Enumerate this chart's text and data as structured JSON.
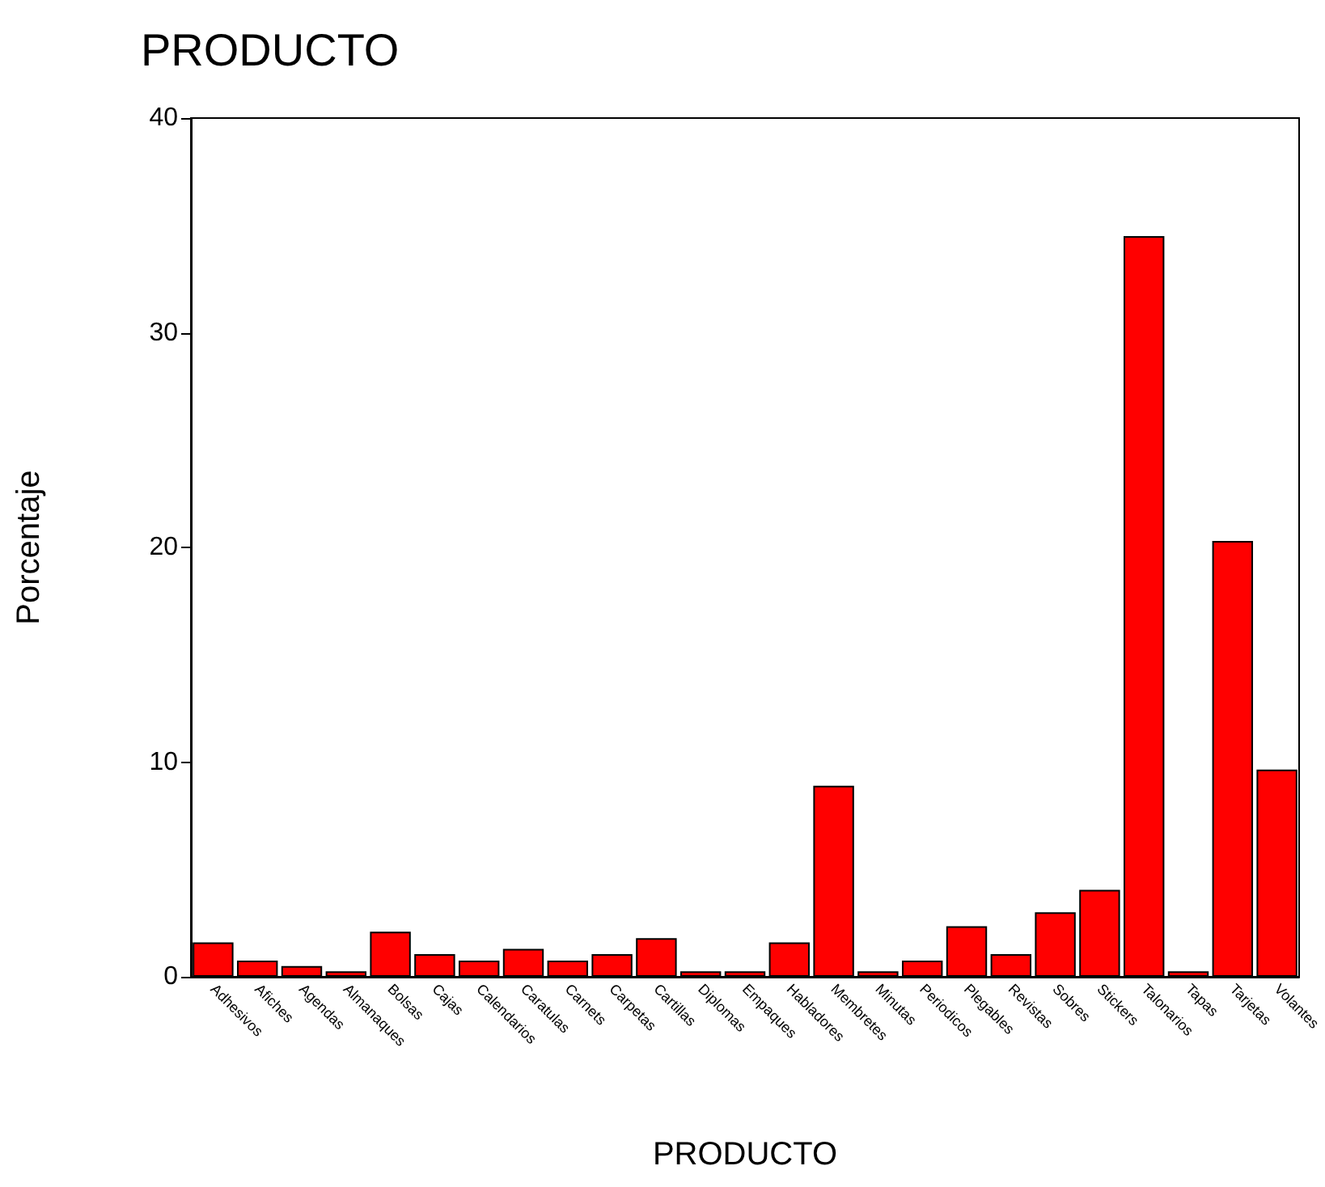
{
  "chart_data": {
    "type": "bar",
    "title": "PRODUCTO",
    "xlabel": "PRODUCTO",
    "ylabel": "Porcentaje",
    "categories": [
      "Adhesivos",
      "Afiches",
      "Agendas",
      "Almanaques",
      "Bolsas",
      "Cajas",
      "Calendarios",
      "Caratulas",
      "Carnets",
      "Carpetas",
      "Cartillas",
      "Diplomas",
      "Empaques",
      "Habladores",
      "Membretes",
      "Minutas",
      "Periodicos",
      "Plegables",
      "Revistas",
      "Sobres",
      "Stickers",
      "Talonarios",
      "Tapas",
      "Tarjetas",
      "Volantes"
    ],
    "values": [
      1.6,
      0.75,
      0.5,
      0.25,
      2.1,
      1.05,
      0.75,
      1.3,
      0.75,
      1.05,
      1.8,
      0.25,
      0.25,
      1.6,
      8.9,
      0.25,
      0.75,
      2.35,
      1.05,
      3.0,
      4.05,
      34.5,
      0.25,
      20.3,
      9.65
    ],
    "color": "#ff0000",
    "ylim": [
      0,
      40
    ],
    "yticks": [
      0,
      10,
      20,
      30,
      40
    ],
    "grid": false
  }
}
